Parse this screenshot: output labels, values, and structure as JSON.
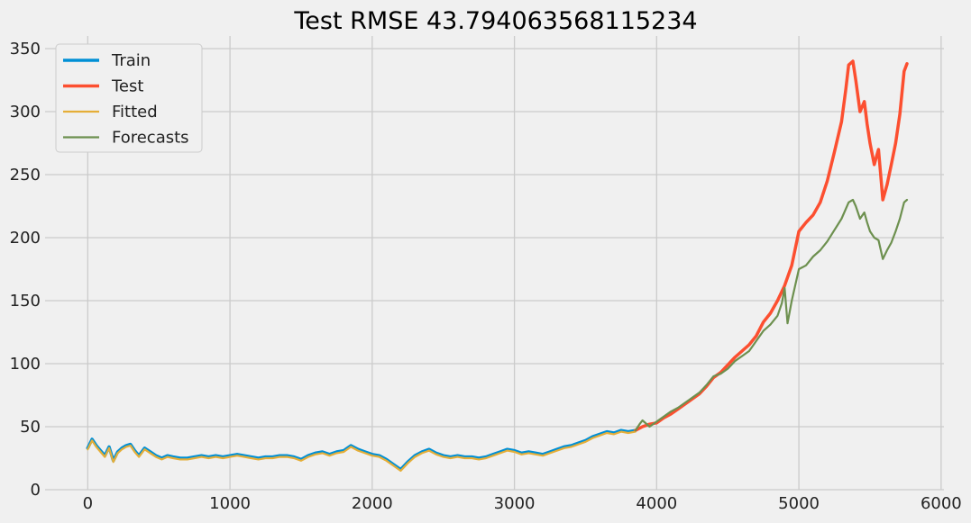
{
  "chart_data": {
    "type": "line",
    "title": "Test RMSE 43.794063568115234",
    "xlabel": "",
    "ylabel": "",
    "xlim": [
      -300,
      6020
    ],
    "ylim": [
      0,
      360
    ],
    "x_ticks": [
      0,
      1000,
      2000,
      3000,
      4000,
      5000,
      6000
    ],
    "y_ticks": [
      0,
      50,
      100,
      150,
      200,
      250,
      300,
      350
    ],
    "grid": true,
    "legend_position": "top-left",
    "series": [
      {
        "name": "Train",
        "color": "#008fd5",
        "points": [
          [
            0,
            33
          ],
          [
            30,
            40
          ],
          [
            60,
            35
          ],
          [
            90,
            31
          ],
          [
            120,
            27
          ],
          [
            150,
            34
          ],
          [
            180,
            23
          ],
          [
            210,
            30
          ],
          [
            240,
            33
          ],
          [
            270,
            35
          ],
          [
            300,
            36
          ],
          [
            330,
            31
          ],
          [
            360,
            27
          ],
          [
            400,
            33
          ],
          [
            440,
            30
          ],
          [
            480,
            27
          ],
          [
            520,
            25
          ],
          [
            560,
            27
          ],
          [
            600,
            26
          ],
          [
            650,
            25
          ],
          [
            700,
            25
          ],
          [
            750,
            26
          ],
          [
            800,
            27
          ],
          [
            850,
            26
          ],
          [
            900,
            27
          ],
          [
            950,
            26
          ],
          [
            1000,
            27
          ],
          [
            1050,
            28
          ],
          [
            1100,
            27
          ],
          [
            1150,
            26
          ],
          [
            1200,
            25
          ],
          [
            1250,
            26
          ],
          [
            1300,
            26
          ],
          [
            1350,
            27
          ],
          [
            1400,
            27
          ],
          [
            1450,
            26
          ],
          [
            1500,
            24
          ],
          [
            1550,
            27
          ],
          [
            1600,
            29
          ],
          [
            1650,
            30
          ],
          [
            1700,
            28
          ],
          [
            1750,
            30
          ],
          [
            1800,
            31
          ],
          [
            1850,
            35
          ],
          [
            1900,
            32
          ],
          [
            1950,
            30
          ],
          [
            2000,
            28
          ],
          [
            2050,
            27
          ],
          [
            2100,
            24
          ],
          [
            2150,
            20
          ],
          [
            2200,
            16
          ],
          [
            2250,
            22
          ],
          [
            2300,
            27
          ],
          [
            2350,
            30
          ],
          [
            2400,
            32
          ],
          [
            2450,
            29
          ],
          [
            2500,
            27
          ],
          [
            2550,
            26
          ],
          [
            2600,
            27
          ],
          [
            2650,
            26
          ],
          [
            2700,
            26
          ],
          [
            2750,
            25
          ],
          [
            2800,
            26
          ],
          [
            2850,
            28
          ],
          [
            2900,
            30
          ],
          [
            2950,
            32
          ],
          [
            3000,
            31
          ],
          [
            3050,
            29
          ],
          [
            3100,
            30
          ],
          [
            3150,
            29
          ],
          [
            3200,
            28
          ],
          [
            3250,
            30
          ],
          [
            3300,
            32
          ],
          [
            3350,
            34
          ],
          [
            3400,
            35
          ],
          [
            3450,
            37
          ],
          [
            3500,
            39
          ],
          [
            3550,
            42
          ],
          [
            3600,
            44
          ],
          [
            3650,
            46
          ],
          [
            3700,
            45
          ],
          [
            3750,
            47
          ],
          [
            3800,
            46
          ],
          [
            3850,
            47
          ]
        ]
      },
      {
        "name": "Test",
        "color": "#fc4f30",
        "points": [
          [
            3850,
            47
          ],
          [
            3900,
            50
          ],
          [
            3950,
            52
          ],
          [
            4000,
            53
          ],
          [
            4050,
            57
          ],
          [
            4100,
            60
          ],
          [
            4150,
            64
          ],
          [
            4200,
            68
          ],
          [
            4250,
            72
          ],
          [
            4300,
            76
          ],
          [
            4350,
            82
          ],
          [
            4400,
            89
          ],
          [
            4450,
            93
          ],
          [
            4500,
            99
          ],
          [
            4550,
            105
          ],
          [
            4600,
            110
          ],
          [
            4650,
            115
          ],
          [
            4700,
            122
          ],
          [
            4750,
            133
          ],
          [
            4800,
            140
          ],
          [
            4850,
            150
          ],
          [
            4900,
            162
          ],
          [
            4950,
            178
          ],
          [
            5000,
            205
          ],
          [
            5050,
            212
          ],
          [
            5100,
            218
          ],
          [
            5150,
            228
          ],
          [
            5200,
            245
          ],
          [
            5250,
            268
          ],
          [
            5300,
            292
          ],
          [
            5330,
            318
          ],
          [
            5350,
            337
          ],
          [
            5380,
            340
          ],
          [
            5400,
            325
          ],
          [
            5430,
            300
          ],
          [
            5460,
            308
          ],
          [
            5480,
            290
          ],
          [
            5500,
            275
          ],
          [
            5530,
            258
          ],
          [
            5560,
            270
          ],
          [
            5590,
            230
          ],
          [
            5620,
            242
          ],
          [
            5650,
            258
          ],
          [
            5680,
            275
          ],
          [
            5710,
            298
          ],
          [
            5740,
            332
          ],
          [
            5760,
            338
          ]
        ]
      },
      {
        "name": "Fitted",
        "color": "#e5ae38",
        "points": [
          [
            0,
            32
          ],
          [
            30,
            39
          ],
          [
            60,
            34
          ],
          [
            90,
            30
          ],
          [
            120,
            26
          ],
          [
            150,
            33
          ],
          [
            180,
            22
          ],
          [
            210,
            29
          ],
          [
            240,
            32
          ],
          [
            270,
            34
          ],
          [
            300,
            35
          ],
          [
            330,
            30
          ],
          [
            360,
            26
          ],
          [
            400,
            32
          ],
          [
            440,
            29
          ],
          [
            480,
            26
          ],
          [
            520,
            24
          ],
          [
            560,
            26
          ],
          [
            600,
            25
          ],
          [
            650,
            24
          ],
          [
            700,
            24
          ],
          [
            750,
            25
          ],
          [
            800,
            26
          ],
          [
            850,
            25
          ],
          [
            900,
            26
          ],
          [
            950,
            25
          ],
          [
            1000,
            26
          ],
          [
            1050,
            27
          ],
          [
            1100,
            26
          ],
          [
            1150,
            25
          ],
          [
            1200,
            24
          ],
          [
            1250,
            25
          ],
          [
            1300,
            25
          ],
          [
            1350,
            26
          ],
          [
            1400,
            26
          ],
          [
            1450,
            25
          ],
          [
            1500,
            23
          ],
          [
            1550,
            26
          ],
          [
            1600,
            28
          ],
          [
            1650,
            29
          ],
          [
            1700,
            27
          ],
          [
            1750,
            29
          ],
          [
            1800,
            30
          ],
          [
            1850,
            34
          ],
          [
            1900,
            31
          ],
          [
            1950,
            29
          ],
          [
            2000,
            27
          ],
          [
            2050,
            26
          ],
          [
            2100,
            23
          ],
          [
            2150,
            19
          ],
          [
            2200,
            15
          ],
          [
            2250,
            21
          ],
          [
            2300,
            26
          ],
          [
            2350,
            29
          ],
          [
            2400,
            31
          ],
          [
            2450,
            28
          ],
          [
            2500,
            26
          ],
          [
            2550,
            25
          ],
          [
            2600,
            26
          ],
          [
            2650,
            25
          ],
          [
            2700,
            25
          ],
          [
            2750,
            24
          ],
          [
            2800,
            25
          ],
          [
            2850,
            27
          ],
          [
            2900,
            29
          ],
          [
            2950,
            31
          ],
          [
            3000,
            30
          ],
          [
            3050,
            28
          ],
          [
            3100,
            29
          ],
          [
            3150,
            28
          ],
          [
            3200,
            27
          ],
          [
            3250,
            29
          ],
          [
            3300,
            31
          ],
          [
            3350,
            33
          ],
          [
            3400,
            34
          ],
          [
            3450,
            36
          ],
          [
            3500,
            38
          ],
          [
            3550,
            41
          ],
          [
            3600,
            43
          ],
          [
            3650,
            45
          ],
          [
            3700,
            44
          ],
          [
            3750,
            46
          ],
          [
            3800,
            45
          ],
          [
            3850,
            46
          ]
        ]
      },
      {
        "name": "Forecasts",
        "color": "#6d904f",
        "points": [
          [
            3850,
            47
          ],
          [
            3880,
            52
          ],
          [
            3900,
            55
          ],
          [
            3950,
            50
          ],
          [
            4000,
            54
          ],
          [
            4050,
            58
          ],
          [
            4100,
            62
          ],
          [
            4150,
            65
          ],
          [
            4200,
            69
          ],
          [
            4250,
            73
          ],
          [
            4300,
            77
          ],
          [
            4350,
            83
          ],
          [
            4400,
            90
          ],
          [
            4450,
            92
          ],
          [
            4500,
            96
          ],
          [
            4550,
            102
          ],
          [
            4600,
            106
          ],
          [
            4650,
            110
          ],
          [
            4700,
            118
          ],
          [
            4750,
            126
          ],
          [
            4800,
            131
          ],
          [
            4850,
            138
          ],
          [
            4880,
            148
          ],
          [
            4900,
            160
          ],
          [
            4920,
            132
          ],
          [
            4950,
            150
          ],
          [
            5000,
            175
          ],
          [
            5050,
            178
          ],
          [
            5100,
            185
          ],
          [
            5150,
            190
          ],
          [
            5200,
            197
          ],
          [
            5250,
            206
          ],
          [
            5300,
            215
          ],
          [
            5350,
            228
          ],
          [
            5380,
            230
          ],
          [
            5400,
            225
          ],
          [
            5430,
            215
          ],
          [
            5460,
            220
          ],
          [
            5480,
            212
          ],
          [
            5500,
            205
          ],
          [
            5530,
            200
          ],
          [
            5560,
            198
          ],
          [
            5590,
            183
          ],
          [
            5620,
            190
          ],
          [
            5650,
            196
          ],
          [
            5680,
            205
          ],
          [
            5710,
            215
          ],
          [
            5740,
            228
          ],
          [
            5760,
            230
          ]
        ]
      }
    ]
  }
}
